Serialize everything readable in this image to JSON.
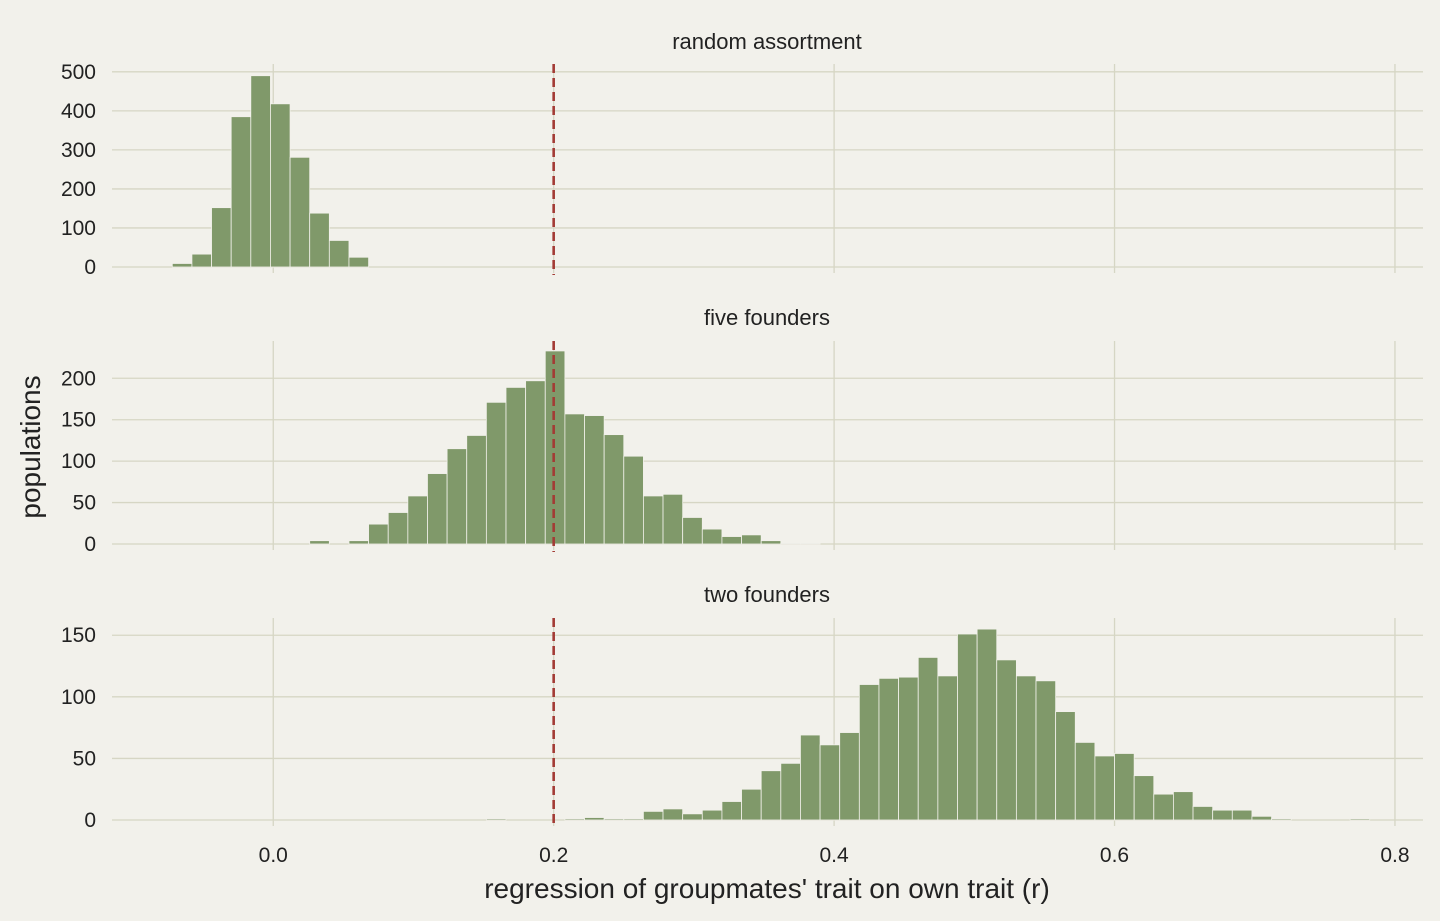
{
  "chart_data": [
    {
      "type": "bar",
      "subtype": "histogram",
      "title": "random assortment",
      "xlim": [
        -0.115,
        0.82
      ],
      "ylim": [
        0,
        520
      ],
      "yticks": [
        0,
        100,
        200,
        300,
        400,
        500
      ],
      "bar_color": "#80996a",
      "reference_line": {
        "x": 0.2,
        "style": "dashed",
        "color": "#a33b35"
      },
      "bins": [
        {
          "x0": -0.072,
          "x1": -0.058,
          "count": 9
        },
        {
          "x0": -0.058,
          "x1": -0.044,
          "count": 33
        },
        {
          "x0": -0.044,
          "x1": -0.03,
          "count": 152
        },
        {
          "x0": -0.03,
          "x1": -0.016,
          "count": 385
        },
        {
          "x0": -0.016,
          "x1": -0.002,
          "count": 490
        },
        {
          "x0": -0.002,
          "x1": 0.012,
          "count": 418
        },
        {
          "x0": 0.012,
          "x1": 0.026,
          "count": 281
        },
        {
          "x0": 0.026,
          "x1": 0.04,
          "count": 138
        },
        {
          "x0": 0.04,
          "x1": 0.054,
          "count": 68
        },
        {
          "x0": 0.054,
          "x1": 0.068,
          "count": 25
        }
      ]
    },
    {
      "type": "bar",
      "subtype": "histogram",
      "title": "five founders",
      "ylabel": "populations",
      "xlim": [
        -0.115,
        0.82
      ],
      "ylim": [
        0,
        245
      ],
      "yticks": [
        0,
        50,
        100,
        150,
        200
      ],
      "bar_color": "#80996a",
      "reference_line": {
        "x": 0.2,
        "style": "dashed",
        "color": "#a33b35"
      },
      "bins": [
        {
          "x0": 0.026,
          "x1": 0.04,
          "count": 4
        },
        {
          "x0": 0.054,
          "x1": 0.068,
          "count": 4
        },
        {
          "x0": 0.068,
          "x1": 0.082,
          "count": 24
        },
        {
          "x0": 0.082,
          "x1": 0.096,
          "count": 38
        },
        {
          "x0": 0.096,
          "x1": 0.11,
          "count": 58
        },
        {
          "x0": 0.11,
          "x1": 0.124,
          "count": 85
        },
        {
          "x0": 0.124,
          "x1": 0.138,
          "count": 115
        },
        {
          "x0": 0.138,
          "x1": 0.152,
          "count": 131
        },
        {
          "x0": 0.152,
          "x1": 0.166,
          "count": 171
        },
        {
          "x0": 0.166,
          "x1": 0.18,
          "count": 189
        },
        {
          "x0": 0.18,
          "x1": 0.194,
          "count": 197
        },
        {
          "x0": 0.194,
          "x1": 0.208,
          "count": 233
        },
        {
          "x0": 0.208,
          "x1": 0.222,
          "count": 157
        },
        {
          "x0": 0.222,
          "x1": 0.236,
          "count": 155
        },
        {
          "x0": 0.236,
          "x1": 0.25,
          "count": 132
        },
        {
          "x0": 0.25,
          "x1": 0.264,
          "count": 106
        },
        {
          "x0": 0.264,
          "x1": 0.278,
          "count": 58
        },
        {
          "x0": 0.278,
          "x1": 0.292,
          "count": 60
        },
        {
          "x0": 0.292,
          "x1": 0.306,
          "count": 32
        },
        {
          "x0": 0.306,
          "x1": 0.32,
          "count": 18
        },
        {
          "x0": 0.32,
          "x1": 0.334,
          "count": 9
        },
        {
          "x0": 0.334,
          "x1": 0.348,
          "count": 11
        },
        {
          "x0": 0.348,
          "x1": 0.362,
          "count": 4
        },
        {
          "x0": 0.362,
          "x1": 0.376,
          "count": 1
        },
        {
          "x0": 0.376,
          "x1": 0.39,
          "count": 1
        }
      ]
    },
    {
      "type": "bar",
      "subtype": "histogram",
      "title": "two founders",
      "xlabel": "regression of groupmates' trait on own trait (r)",
      "xlim": [
        -0.115,
        0.82
      ],
      "ylim": [
        0,
        164
      ],
      "yticks": [
        0,
        50,
        100,
        150
      ],
      "xticks": [
        0.0,
        0.2,
        0.4,
        0.6,
        0.8
      ],
      "xtick_labels": [
        "0.0",
        "0.2",
        "0.4",
        "0.6",
        "0.8"
      ],
      "bar_color": "#80996a",
      "reference_line": {
        "x": 0.2,
        "style": "dashed",
        "color": "#a33b35"
      },
      "bins": [
        {
          "x0": 0.152,
          "x1": 0.166,
          "count": 1
        },
        {
          "x0": 0.208,
          "x1": 0.222,
          "count": 1
        },
        {
          "x0": 0.222,
          "x1": 0.236,
          "count": 2
        },
        {
          "x0": 0.236,
          "x1": 0.25,
          "count": 1
        },
        {
          "x0": 0.25,
          "x1": 0.264,
          "count": 1
        },
        {
          "x0": 0.264,
          "x1": 0.278,
          "count": 7
        },
        {
          "x0": 0.278,
          "x1": 0.292,
          "count": 9
        },
        {
          "x0": 0.292,
          "x1": 0.306,
          "count": 5
        },
        {
          "x0": 0.306,
          "x1": 0.32,
          "count": 8
        },
        {
          "x0": 0.32,
          "x1": 0.334,
          "count": 15
        },
        {
          "x0": 0.334,
          "x1": 0.348,
          "count": 25
        },
        {
          "x0": 0.348,
          "x1": 0.362,
          "count": 40
        },
        {
          "x0": 0.362,
          "x1": 0.376,
          "count": 46
        },
        {
          "x0": 0.376,
          "x1": 0.39,
          "count": 69
        },
        {
          "x0": 0.39,
          "x1": 0.404,
          "count": 61
        },
        {
          "x0": 0.404,
          "x1": 0.418,
          "count": 71
        },
        {
          "x0": 0.418,
          "x1": 0.432,
          "count": 110
        },
        {
          "x0": 0.432,
          "x1": 0.446,
          "count": 115
        },
        {
          "x0": 0.446,
          "x1": 0.46,
          "count": 116
        },
        {
          "x0": 0.46,
          "x1": 0.474,
          "count": 132
        },
        {
          "x0": 0.474,
          "x1": 0.488,
          "count": 117
        },
        {
          "x0": 0.488,
          "x1": 0.502,
          "count": 151
        },
        {
          "x0": 0.502,
          "x1": 0.516,
          "count": 155
        },
        {
          "x0": 0.516,
          "x1": 0.53,
          "count": 130
        },
        {
          "x0": 0.53,
          "x1": 0.544,
          "count": 117
        },
        {
          "x0": 0.544,
          "x1": 0.558,
          "count": 113
        },
        {
          "x0": 0.558,
          "x1": 0.572,
          "count": 88
        },
        {
          "x0": 0.572,
          "x1": 0.586,
          "count": 63
        },
        {
          "x0": 0.586,
          "x1": 0.6,
          "count": 52
        },
        {
          "x0": 0.6,
          "x1": 0.614,
          "count": 54
        },
        {
          "x0": 0.614,
          "x1": 0.628,
          "count": 36
        },
        {
          "x0": 0.628,
          "x1": 0.642,
          "count": 21
        },
        {
          "x0": 0.642,
          "x1": 0.656,
          "count": 23
        },
        {
          "x0": 0.656,
          "x1": 0.67,
          "count": 11
        },
        {
          "x0": 0.67,
          "x1": 0.684,
          "count": 8
        },
        {
          "x0": 0.684,
          "x1": 0.698,
          "count": 8
        },
        {
          "x0": 0.698,
          "x1": 0.712,
          "count": 3
        },
        {
          "x0": 0.712,
          "x1": 0.726,
          "count": 1
        },
        {
          "x0": 0.768,
          "x1": 0.782,
          "count": 1
        }
      ]
    }
  ]
}
